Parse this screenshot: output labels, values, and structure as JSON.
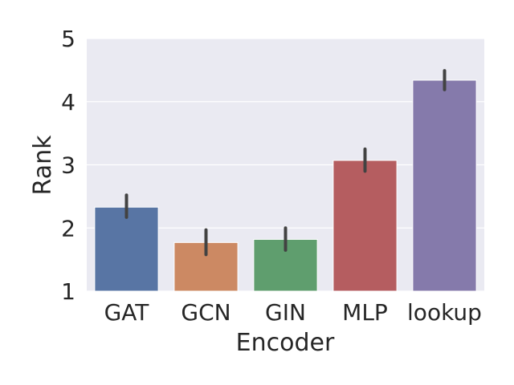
{
  "chart_data": {
    "type": "bar",
    "categories": [
      "GAT",
      "GCN",
      "GIN",
      "MLP",
      "lookup"
    ],
    "values": [
      2.33,
      1.77,
      1.82,
      3.07,
      4.34
    ],
    "error_bars": [
      [
        2.17,
        2.52
      ],
      [
        1.58,
        1.97
      ],
      [
        1.65,
        2.0
      ],
      [
        2.9,
        3.25
      ],
      [
        4.19,
        4.49
      ]
    ],
    "colors": [
      "#5875a4",
      "#cc8963",
      "#5f9e6e",
      "#b55d60",
      "#857aab"
    ],
    "xlabel": "Encoder",
    "ylabel": "Rank",
    "ylim": [
      1,
      5
    ],
    "yticks": [
      "1",
      "2",
      "3",
      "4",
      "5"
    ],
    "grid": true,
    "background": "#eaeaf2"
  }
}
